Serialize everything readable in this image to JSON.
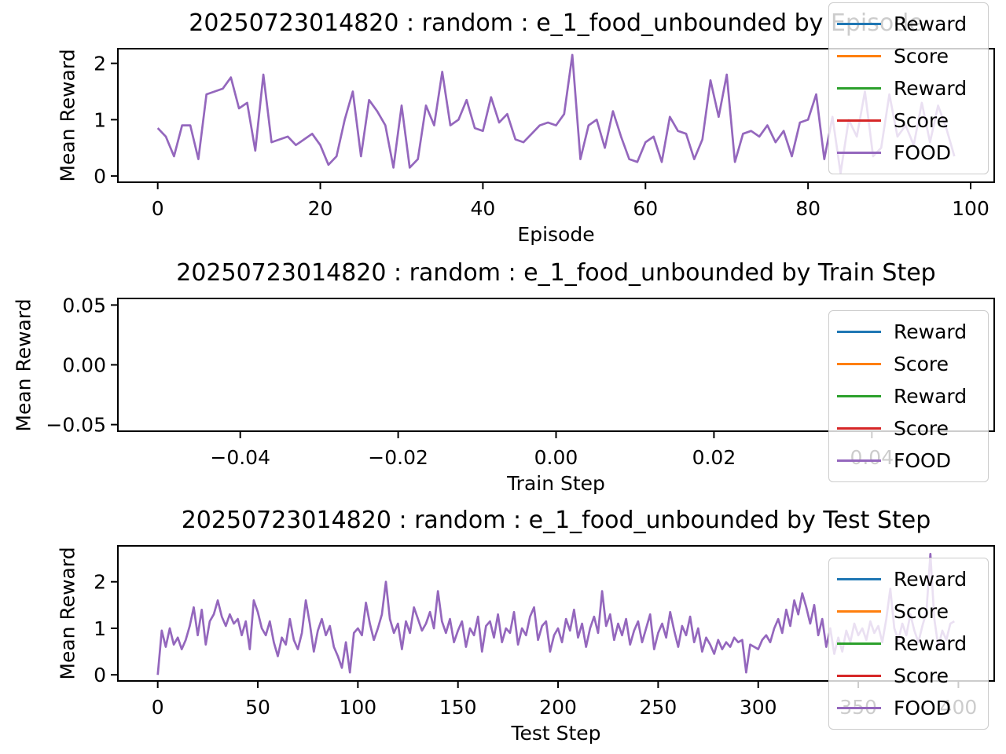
{
  "background": "#ffffff",
  "chart_data": [
    {
      "type": "line",
      "title": "20250723014820 : random : e_1_food_unbounded by Episode",
      "xlabel": "Episode",
      "ylabel": "Mean Reward",
      "xlim": [
        -4.9,
        102.9
      ],
      "ylim": [
        -0.11,
        2.26
      ],
      "xticks": {
        "pos": [
          0,
          20,
          40,
          60,
          80,
          100
        ],
        "labels": [
          "0",
          "20",
          "40",
          "60",
          "80",
          "100"
        ]
      },
      "yticks": {
        "pos": [
          0,
          1,
          2
        ],
        "labels": [
          "0",
          "1",
          "2"
        ]
      },
      "legend": [
        {
          "label": "Reward",
          "color": "#1f77b4"
        },
        {
          "label": "Score",
          "color": "#ff7f0e"
        },
        {
          "label": "Reward",
          "color": "#2ca02c"
        },
        {
          "label": "Score",
          "color": "#d62728"
        },
        {
          "label": "FOOD",
          "color": "#9467bd"
        }
      ],
      "note": "All five series overlap exactly; only the purple FOOD line (drawn last) is visible.",
      "series": [
        {
          "name": "FOOD",
          "color": "#9467bd",
          "x_start": 0,
          "x_step": 1,
          "values": [
            0.85,
            0.7,
            0.35,
            0.9,
            0.9,
            0.3,
            1.45,
            1.5,
            1.55,
            1.75,
            1.2,
            1.3,
            0.45,
            1.8,
            0.6,
            0.65,
            0.7,
            0.55,
            0.65,
            0.75,
            0.55,
            0.2,
            0.35,
            1.0,
            1.5,
            0.35,
            1.35,
            1.15,
            0.9,
            0.15,
            1.25,
            0.15,
            0.3,
            1.25,
            0.9,
            1.85,
            0.9,
            1.0,
            1.35,
            0.85,
            0.8,
            1.4,
            0.95,
            1.1,
            0.65,
            0.6,
            0.75,
            0.9,
            0.95,
            0.9,
            1.1,
            2.15,
            0.3,
            0.9,
            1.0,
            0.5,
            1.15,
            0.7,
            0.3,
            0.25,
            0.6,
            0.7,
            0.25,
            1.05,
            0.8,
            0.75,
            0.3,
            0.65,
            1.7,
            1.05,
            1.8,
            0.25,
            0.75,
            0.8,
            0.7,
            0.9,
            0.6,
            0.8,
            0.35,
            0.95,
            1.0,
            1.45,
            0.3,
            1.05,
            0.05,
            1.0,
            0.7,
            1.5,
            0.35,
            0.5,
            1.45,
            0.7,
            0.9,
            0.55,
            1.3,
            0.6,
            1.25,
            0.85,
            0.35
          ]
        }
      ]
    },
    {
      "type": "line",
      "title": "20250723014820 : random : e_1_food_unbounded by Train Step",
      "xlabel": "Train Step",
      "ylabel": "Mean Reward",
      "xlim": [
        -0.0555,
        0.0555
      ],
      "ylim": [
        -0.0555,
        0.0555
      ],
      "xticks": {
        "pos": [
          -0.04,
          -0.02,
          0.0,
          0.02,
          0.04
        ],
        "labels": [
          "−0.04",
          "−0.02",
          "0.00",
          "0.02",
          "0.04"
        ]
      },
      "yticks": {
        "pos": [
          -0.05,
          0.0,
          0.05
        ],
        "labels": [
          "−0.05",
          "0.00",
          "0.05"
        ]
      },
      "legend": [
        {
          "label": "Reward",
          "color": "#1f77b4"
        },
        {
          "label": "Score",
          "color": "#ff7f0e"
        },
        {
          "label": "Reward",
          "color": "#2ca02c"
        },
        {
          "label": "Score",
          "color": "#d62728"
        },
        {
          "label": "FOOD",
          "color": "#9467bd"
        }
      ],
      "note": "No data plotted; axes show default empty-plot limits.",
      "series": []
    },
    {
      "type": "line",
      "title": "20250723014820 : random : e_1_food_unbounded by Test Step",
      "xlabel": "Test Step",
      "ylabel": "Mean Reward",
      "xlim": [
        -19.9,
        417.9
      ],
      "ylim": [
        -0.132,
        2.772
      ],
      "xticks": {
        "pos": [
          0,
          50,
          100,
          150,
          200,
          250,
          300,
          350,
          400
        ],
        "labels": [
          "0",
          "50",
          "100",
          "150",
          "200",
          "250",
          "300",
          "350",
          "400"
        ]
      },
      "yticks": {
        "pos": [
          0,
          1,
          2
        ],
        "labels": [
          "0",
          "1",
          "2"
        ]
      },
      "legend": [
        {
          "label": "Reward",
          "color": "#1f77b4"
        },
        {
          "label": "Score",
          "color": "#ff7f0e"
        },
        {
          "label": "Reward",
          "color": "#2ca02c"
        },
        {
          "label": "Score",
          "color": "#d62728"
        },
        {
          "label": "FOOD",
          "color": "#9467bd"
        }
      ],
      "note": "All five series overlap exactly; only the purple FOOD line (drawn last) is visible. Values sampled every 2 steps.",
      "series": [
        {
          "name": "FOOD",
          "color": "#9467bd",
          "x_start": 0,
          "x_step": 2,
          "values": [
            0.0,
            0.95,
            0.6,
            1.0,
            0.65,
            0.8,
            0.55,
            0.75,
            1.05,
            1.45,
            0.85,
            1.4,
            0.65,
            1.15,
            1.3,
            1.6,
            1.25,
            1.05,
            1.3,
            1.1,
            1.2,
            0.85,
            1.15,
            0.55,
            1.6,
            1.35,
            1.0,
            0.85,
            1.15,
            0.7,
            0.4,
            0.8,
            0.65,
            1.2,
            0.75,
            0.55,
            0.9,
            1.6,
            1.1,
            0.5,
            0.95,
            1.2,
            0.85,
            1.05,
            0.6,
            0.4,
            0.15,
            0.7,
            0.05,
            0.9,
            1.0,
            0.85,
            1.55,
            1.1,
            0.75,
            1.0,
            1.3,
            2.0,
            1.2,
            0.9,
            1.1,
            0.55,
            1.15,
            0.9,
            1.45,
            1.2,
            0.95,
            1.1,
            1.35,
            1.0,
            1.8,
            1.15,
            0.9,
            1.2,
            0.7,
            0.95,
            1.15,
            0.6,
            1.0,
            0.85,
            1.25,
            0.5,
            1.05,
            1.15,
            0.8,
            1.3,
            0.7,
            1.0,
            0.9,
            1.35,
            0.65,
            1.0,
            0.85,
            1.25,
            1.45,
            0.75,
            1.05,
            1.15,
            0.5,
            0.85,
            1.0,
            0.7,
            1.2,
            0.95,
            1.4,
            0.8,
            1.1,
            0.6,
            1.0,
            1.25,
            0.9,
            1.8,
            1.05,
            1.3,
            0.75,
            1.1,
            0.85,
            1.2,
            0.65,
            0.95,
            1.15,
            0.7,
            1.0,
            1.3,
            0.55,
            0.9,
            1.1,
            0.8,
            1.35,
            0.95,
            0.6,
            1.05,
            0.85,
            1.25,
            0.7,
            1.0,
            0.5,
            0.8,
            0.65,
            0.45,
            0.75,
            0.55,
            0.7,
            0.6,
            0.8,
            0.7,
            0.75,
            0.05,
            0.65,
            0.6,
            0.55,
            0.75,
            0.85,
            0.7,
            1.0,
            1.2,
            0.9,
            1.4,
            1.05,
            1.6,
            1.3,
            1.75,
            1.45,
            1.1,
            1.5,
            0.85,
            1.2,
            0.6,
            1.0,
            0.45,
            0.8,
            0.5,
            0.95,
            0.7,
            1.1,
            0.85,
            1.0,
            0.75,
            1.15,
            0.9,
            1.05,
            0.7,
            1.2,
            1.85,
            1.0,
            0.75,
            1.1,
            0.85,
            1.3,
            0.95,
            0.7,
            1.05,
            1.35,
            2.6,
            1.2,
            0.6,
            0.95,
            0.75,
            1.1,
            1.15
          ]
        }
      ]
    }
  ]
}
